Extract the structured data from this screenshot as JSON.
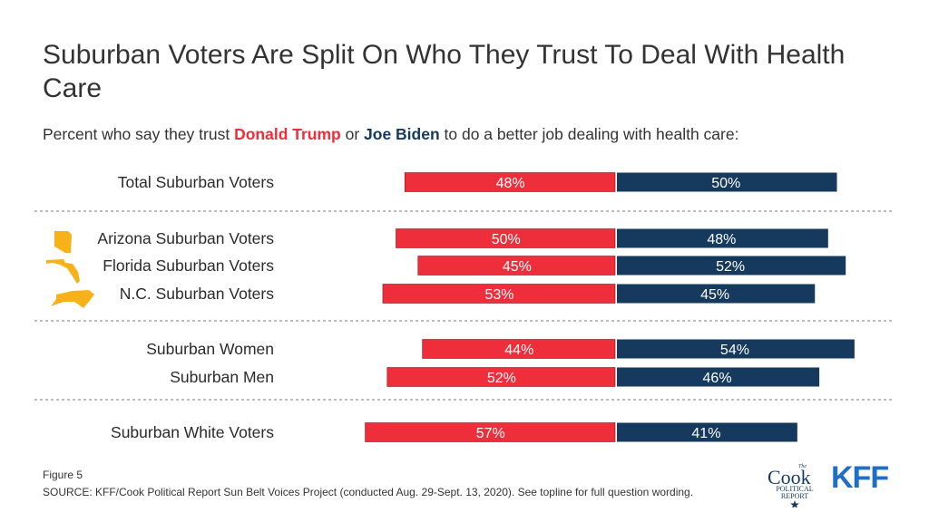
{
  "title": "Suburban Voters Are Split On Who They Trust To Deal With Health Care",
  "subtitle": {
    "prefix": "Percent who say they trust ",
    "trump": "Donald Trump",
    "middle": " or ",
    "biden": "Joe Biden",
    "suffix": " to do a better job dealing with health care:"
  },
  "colors": {
    "trump": "#ee2e3a",
    "biden": "#153a5e",
    "state_icon": "#f7b21a",
    "divider": "#7a7a7a"
  },
  "chart_data": {
    "type": "bar",
    "orientation": "diverging-horizontal",
    "categories": [
      "Total Suburban Voters",
      "Arizona Suburban Voters",
      "Florida Suburban Voters",
      "N.C. Suburban Voters",
      "Suburban Women",
      "Suburban Men",
      "Suburban White Voters"
    ],
    "series": [
      {
        "name": "Donald Trump",
        "values": [
          48,
          50,
          45,
          53,
          44,
          52,
          57
        ]
      },
      {
        "name": "Joe Biden",
        "values": [
          50,
          48,
          52,
          45,
          54,
          46,
          41
        ]
      }
    ],
    "value_labels": {
      "trump": [
        "48%",
        "50%",
        "45%",
        "53%",
        "44%",
        "52%",
        "57%"
      ],
      "biden": [
        "50%",
        "48%",
        "52%",
        "45%",
        "54%",
        "46%",
        "41%"
      ]
    },
    "groups": [
      [
        0
      ],
      [
        1,
        2,
        3
      ],
      [
        4,
        5
      ],
      [
        6
      ]
    ],
    "state_icons": [
      "",
      "arizona-icon",
      "florida-icon",
      "north-carolina-icon",
      "",
      "",
      ""
    ]
  },
  "footer": {
    "figure": "Figure 5",
    "source": "SOURCE: KFF/Cook Political Report Sun Belt Voices Project (conducted Aug. 29-Sept. 13, 2020). See topline for full question wording."
  },
  "logos": {
    "cook_small": "The",
    "cook_main": "Cook",
    "cook_sub1": "POLITICAL",
    "cook_sub2": "REPORT",
    "kff": "KFF"
  }
}
